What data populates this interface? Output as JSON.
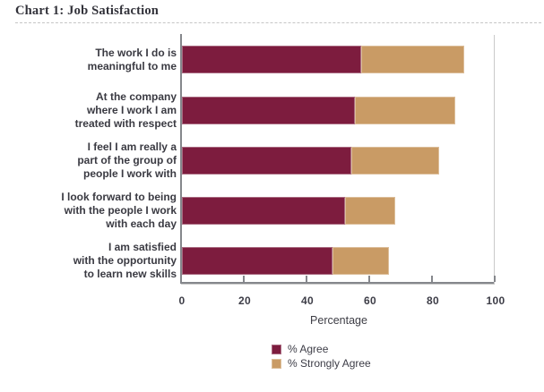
{
  "title": "Chart 1: Job Satisfaction",
  "chart_data": {
    "type": "bar",
    "orientation": "horizontal",
    "stacked": true,
    "title": "Chart 1: Job Satisfaction",
    "xlabel": "Percentage",
    "xlim": [
      0,
      100
    ],
    "xticks": [
      0,
      20,
      40,
      60,
      80,
      100
    ],
    "grid": false,
    "legend_position": "bottom-center",
    "categories": [
      "The work I do is meaningful to me",
      "At the company where I work I am treated with respect",
      "I feel I am really a part of the group of people I work with",
      "I look forward to being with the people I work with each day",
      "I am satisfied with the opportunity to learn new skills"
    ],
    "categories_lines": [
      [
        "The work I do is",
        "meaningful to me"
      ],
      [
        "At the company",
        "where I work I am",
        "treated with respect"
      ],
      [
        "I feel I am really a",
        "part of the group of",
        "people I work with"
      ],
      [
        "I look forward to being",
        "with the people I work",
        "with each day"
      ],
      [
        "I am satisfied",
        "with the opportunity",
        "to learn new skills"
      ]
    ],
    "series": [
      {
        "key": "agree",
        "name": "% Agree",
        "color": "#7D1C3E",
        "values": [
          57,
          55,
          54,
          52,
          48
        ]
      },
      {
        "key": "strongly-agree",
        "name": "% Strongly Agree",
        "color": "#C99B65",
        "values": [
          33,
          32,
          28,
          16,
          18
        ]
      }
    ]
  }
}
